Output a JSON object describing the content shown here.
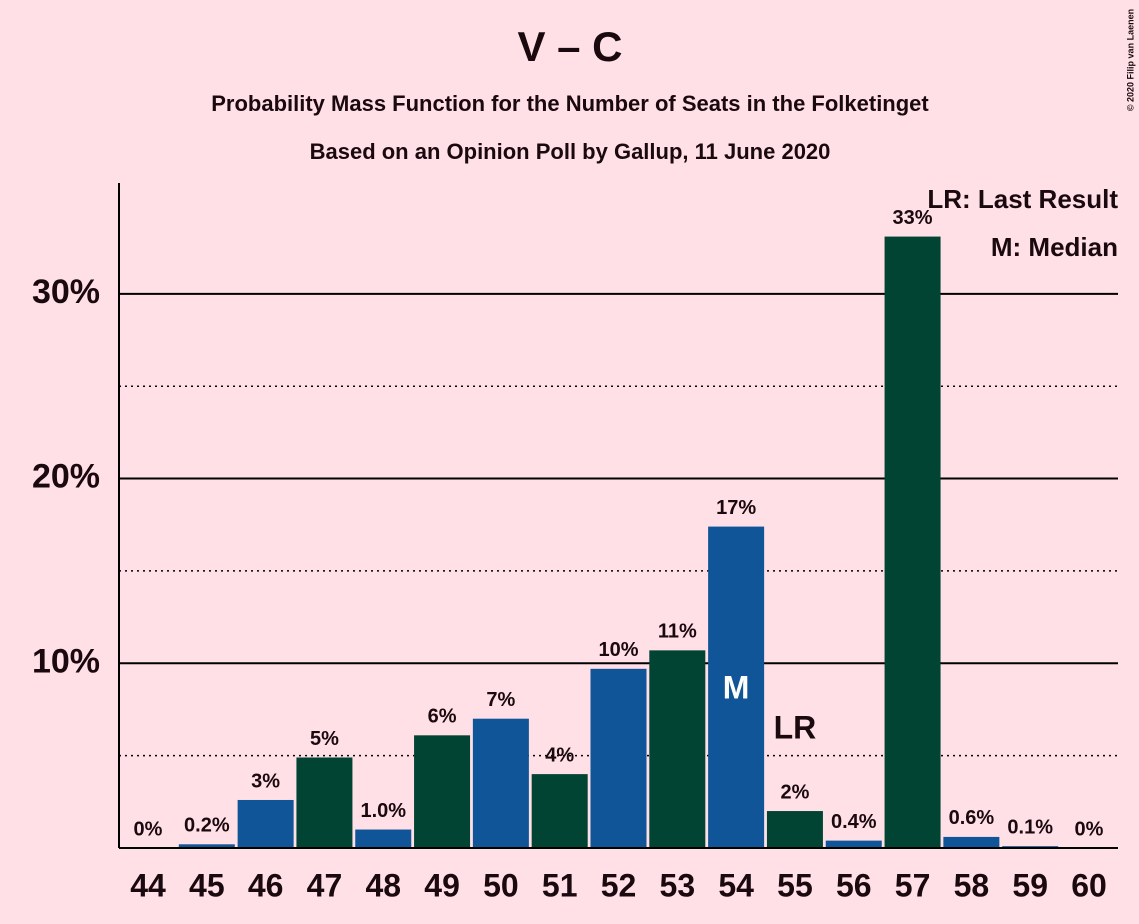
{
  "chart_data": {
    "type": "bar",
    "title": "V – C",
    "subtitle": "Probability Mass Function for the Number of Seats in the Folketinget",
    "subtitle2": "Based on an Opinion Poll by Gallup, 11 June 2020",
    "copyright": "© 2020 Filip van Laenen",
    "categories": [
      "44",
      "45",
      "46",
      "47",
      "48",
      "49",
      "50",
      "51",
      "52",
      "53",
      "54",
      "55",
      "56",
      "57",
      "58",
      "59",
      "60"
    ],
    "values": [
      0,
      0.2,
      2.6,
      4.9,
      1.0,
      6.1,
      7.0,
      4.0,
      9.7,
      10.7,
      17.4,
      2.0,
      0.4,
      33.1,
      0.6,
      0.1,
      0
    ],
    "value_labels": [
      "0%",
      "0.2%",
      "3%",
      "5%",
      "1.0%",
      "6%",
      "7%",
      "4%",
      "10%",
      "11%",
      "17%",
      "2%",
      "0.4%",
      "33%",
      "0.6%",
      "0.1%",
      "0%"
    ],
    "colors": [
      "#0f5597",
      "#0f5597",
      "#0f5597",
      "#024434",
      "#0f5597",
      "#024434",
      "#0f5597",
      "#024434",
      "#0f5597",
      "#024434",
      "#0f5597",
      "#024434",
      "#0f5597",
      "#024434",
      "#0f5597",
      "#0f5597",
      "#0f5597"
    ],
    "ylim": [
      0,
      36
    ],
    "yticks": [
      {
        "value": 10,
        "label": "10%"
      },
      {
        "value": 20,
        "label": "20%"
      },
      {
        "value": 30,
        "label": "30%"
      }
    ],
    "minor_yticks": [
      5,
      15,
      25
    ],
    "grid": true,
    "annotations": [
      {
        "text": "M",
        "category": "54"
      },
      {
        "text": "LR",
        "category": "55"
      }
    ],
    "legend": [
      "LR: Last Result",
      "M: Median"
    ]
  }
}
